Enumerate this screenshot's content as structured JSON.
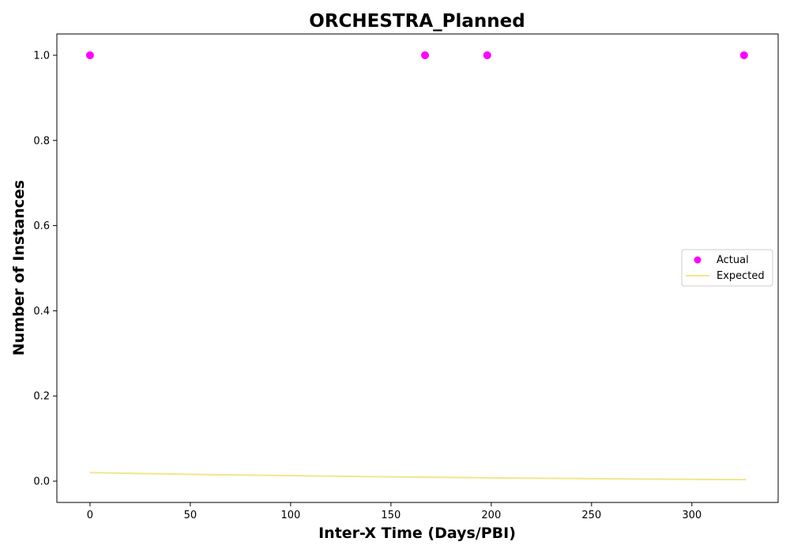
{
  "chart_data": {
    "type": "scatter",
    "title": "ORCHESTRA_Planned",
    "xlabel": "Inter-X Time (Days/PBI)",
    "ylabel": "Number of Instances",
    "xlim": [
      -16.5,
      343
    ],
    "ylim": [
      -0.05,
      1.05
    ],
    "xticks": [
      0,
      50,
      100,
      150,
      200,
      250,
      300
    ],
    "xtick_labels": [
      "0",
      "50",
      "100",
      "150",
      "200",
      "250",
      "300"
    ],
    "yticks": [
      0.0,
      0.2,
      0.4,
      0.6,
      0.8,
      1.0
    ],
    "ytick_labels": [
      "0.0",
      "0.2",
      "0.4",
      "0.6",
      "0.8",
      "1.0"
    ],
    "grid": false,
    "legend_position": "center-right",
    "series": [
      {
        "name": "Actual",
        "kind": "scatter",
        "color": "#ff00ff",
        "x": [
          0,
          167,
          198,
          326
        ],
        "y": [
          1.0,
          1.0,
          1.0,
          1.0
        ]
      },
      {
        "name": "Expected",
        "kind": "line",
        "color": "#f0e68c",
        "x": [
          0,
          25,
          50,
          75,
          100,
          125,
          150,
          175,
          200,
          225,
          250,
          275,
          300,
          327
        ],
        "y": [
          0.02,
          0.018,
          0.016,
          0.0145,
          0.013,
          0.0115,
          0.01,
          0.009,
          0.0078,
          0.0068,
          0.0058,
          0.005,
          0.0043,
          0.0035
        ]
      }
    ]
  }
}
